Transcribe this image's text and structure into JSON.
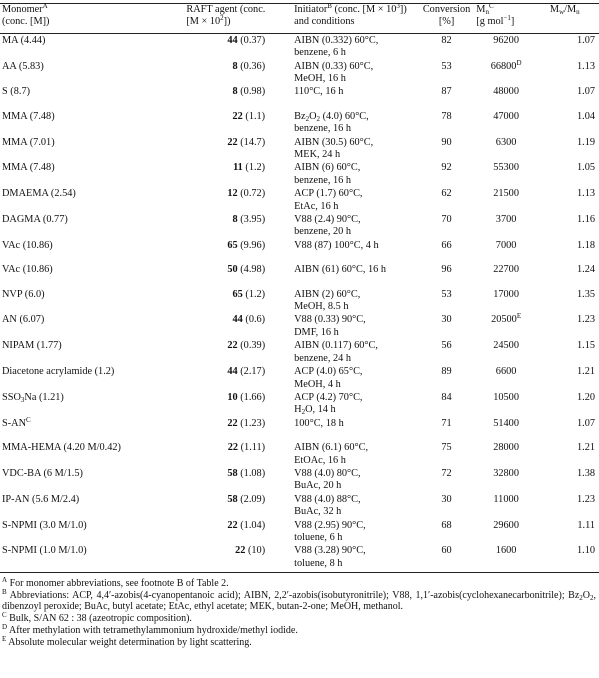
{
  "header": {
    "col1_line1": "Monomer",
    "col1_sup": "A",
    "col1_line2": "(conc. [M])",
    "col2_line1": "RAFT agent (conc.",
    "col2_line2": "[M × 10",
    "col2_exp": "2",
    "col2_tail": "])",
    "col3_line1a": "Initiator",
    "col3_sup": "B",
    "col3_line1b": " (conc. [M × 10",
    "col3_exp": "3",
    "col3_line1c": "])",
    "col3_line2": "and conditions",
    "col4_line1": "Conversion",
    "col4_line2": "[%]",
    "col5_sym": "M",
    "col5_sub": "n",
    "col5_sup": "C",
    "col5_unit": "[g mol",
    "col5_unit_exp": "−1",
    "col5_unit_tail": "]",
    "col6_sym1": "M",
    "col6_sub1": "w",
    "col6_sep": "/",
    "col6_sym2": "M",
    "col6_sub2": "n"
  },
  "rows": [
    {
      "monomer": "MA (4.44)",
      "raft": "44",
      "raft_conc": " (0.37)",
      "init1": "AIBN (0.332) 60°C,",
      "init2": "benzene, 6 h",
      "conv": "82",
      "mn": "96200",
      "mn_sup": "",
      "pdi": "1.07"
    },
    {
      "monomer": "AA (5.83)",
      "raft": "8",
      "raft_conc": " (0.36)",
      "init1": "AIBN (0.33) 60°C,",
      "init2": "MeOH, 16 h",
      "conv": "53",
      "mn": "66800",
      "mn_sup": "D",
      "pdi": "1.13"
    },
    {
      "monomer": "S (8.7)",
      "raft": "8",
      "raft_conc": " (0.98)",
      "init1": "110°C, 16 h",
      "init2": "",
      "conv": "87",
      "mn": "48000",
      "mn_sup": "",
      "pdi": "1.07"
    },
    {
      "monomer": "MMA (7.48)",
      "raft": "22",
      "raft_conc": " (1.1)",
      "init1": "Bz2O2 (4.0) 60°C,",
      "init2": "benzene, 16 h",
      "conv": "78",
      "mn": "47000",
      "mn_sup": "",
      "pdi": "1.04"
    },
    {
      "monomer": "MMA (7.01)",
      "raft": "22",
      "raft_conc": " (14.7)",
      "init1": "AIBN (30.5) 60°C,",
      "init2": "MEK, 24 h",
      "conv": "90",
      "mn": "6300",
      "mn_sup": "",
      "pdi": "1.19"
    },
    {
      "monomer": "MMA (7.48)",
      "raft": "11",
      "raft_conc": " (1.2)",
      "init1": "AIBN (6) 60°C,",
      "init2": "benzene, 16 h",
      "conv": "92",
      "mn": "55300",
      "mn_sup": "",
      "pdi": "1.05"
    },
    {
      "monomer": "DMAEMA (2.54)",
      "raft": "12",
      "raft_conc": " (0.72)",
      "init1": "ACP (1.7) 60°C,",
      "init2": "EtAc, 16 h",
      "conv": "62",
      "mn": "21500",
      "mn_sup": "",
      "pdi": "1.13"
    },
    {
      "monomer": "DAGMA (0.77)",
      "raft": "8",
      "raft_conc": " (3.95)",
      "init1": "V88 (2.4) 90°C,",
      "init2": "benzene, 20 h",
      "conv": "70",
      "mn": "3700",
      "mn_sup": "",
      "pdi": "1.16"
    },
    {
      "monomer": "VAc (10.86)",
      "raft": "65",
      "raft_conc": " (9.96)",
      "init1": "V88 (87) 100°C, 4 h",
      "init2": "",
      "conv": "66",
      "mn": "7000",
      "mn_sup": "",
      "pdi": "1.18"
    },
    {
      "monomer": "VAc (10.86)",
      "raft": "50",
      "raft_conc": " (4.98)",
      "init1": "AIBN (61) 60°C, 16 h",
      "init2": "",
      "conv": "96",
      "mn": "22700",
      "mn_sup": "",
      "pdi": "1.24"
    },
    {
      "monomer": "NVP (6.0)",
      "raft": "65",
      "raft_conc": " (1.2)",
      "init1": "AIBN (2) 60°C,",
      "init2": "MeOH, 8.5 h",
      "conv": "53",
      "mn": "17000",
      "mn_sup": "",
      "pdi": "1.35"
    },
    {
      "monomer": "AN (6.07)",
      "raft": "44",
      "raft_conc": " (0.6)",
      "init1": "V88 (0.33) 90°C,",
      "init2": "DMF, 16 h",
      "conv": "30",
      "mn": "20500",
      "mn_sup": "E",
      "pdi": "1.23"
    },
    {
      "monomer": "NIPAM (1.77)",
      "raft": "22",
      "raft_conc": " (0.39)",
      "init1": "AIBN (0.117) 60°C,",
      "init2": "benzene, 24 h",
      "conv": "56",
      "mn": "24500",
      "mn_sup": "",
      "pdi": "1.15"
    },
    {
      "monomer": "Diacetone acrylamide (1.2)",
      "raft": "44",
      "raft_conc": " (2.17)",
      "init1": "ACP (4.0) 65°C,",
      "init2": "MeOH, 4 h",
      "conv": "89",
      "mn": "6600",
      "mn_sup": "",
      "pdi": "1.21"
    },
    {
      "monomer": "SSO3Na (1.21)",
      "raft": "10",
      "raft_conc": " (1.66)",
      "init1": "ACP (4.2) 70°C,",
      "init2": "H2O, 14 h",
      "conv": "84",
      "mn": "10500",
      "mn_sup": "",
      "pdi": "1.20"
    },
    {
      "monomer": "S-AN",
      "monomer_sup": "C",
      "raft": "22",
      "raft_conc": " (1.23)",
      "init1": "100°C, 18 h",
      "init2": "",
      "conv": "71",
      "mn": "51400",
      "mn_sup": "",
      "pdi": "1.07"
    },
    {
      "monomer": "MMA-HEMA (4.20 M/0.42)",
      "raft": "22",
      "raft_conc": " (1.11)",
      "init1": "AIBN (6.1) 60°C,",
      "init2": "EtOAc, 16 h",
      "conv": "75",
      "mn": "28000",
      "mn_sup": "",
      "pdi": "1.21"
    },
    {
      "monomer": "VDC-BA (6 M/1.5)",
      "raft": "58",
      "raft_conc": " (1.08)",
      "init1": "V88 (4.0) 80°C,",
      "init2": "BuAc, 20 h",
      "conv": "72",
      "mn": "32800",
      "mn_sup": "",
      "pdi": "1.38"
    },
    {
      "monomer": "IP-AN (5.6 M/2.4)",
      "raft": "58",
      "raft_conc": " (2.09)",
      "init1": "V88 (4.0) 88°C,",
      "init2": "BuAc, 32 h",
      "conv": "30",
      "mn": "11000",
      "mn_sup": "",
      "pdi": "1.23"
    },
    {
      "monomer": "S-NPMI (3.0 M/1.0)",
      "raft": "22",
      "raft_conc": " (1.04)",
      "init1": "V88 (2.95) 90°C,",
      "init2": "toluene, 6 h",
      "conv": "68",
      "mn": "29600",
      "mn_sup": "",
      "pdi": "1.11"
    },
    {
      "monomer": "S-NPMI (1.0 M/1.0)",
      "raft": "22",
      "raft_conc": " (10)",
      "init1": "V88 (3.28) 90°C,",
      "init2": "toluene, 8 h",
      "conv": "60",
      "mn": "1600",
      "mn_sup": "",
      "pdi": "1.10"
    }
  ],
  "footnotes": {
    "a_mark": "A",
    "a_text": " For monomer abbreviations, see footnote B of Table 2.",
    "b_mark": "B",
    "b_text": " Abbreviations: ACP, 4,4′-azobis(4-cyanopentanoic acid); AIBN, 2,2′-azobis(isobutyronitrile); V88, 1,1′-azobis(cyclohexanecarbonitrile); Bz2O2, dibenzoyl peroxide; BuAc, butyl acetate; EtAc, ethyl acetate; MEK, butan-2-one; MeOH, methanol.",
    "c_mark": "C",
    "c_text": " Bulk, S/AN 62 : 38 (azeotropic composition).",
    "d_mark": "D",
    "d_text": " After methylation with tetramethylammonium hydroxide/methyl iodide.",
    "e_mark": "E",
    "e_text": " Absolute molecular weight determination by light scattering."
  }
}
